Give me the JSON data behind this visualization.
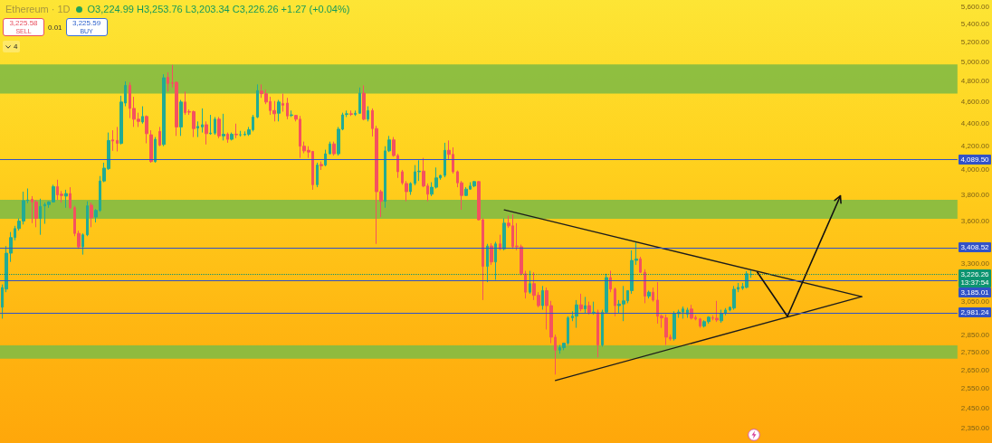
{
  "chart_data": {
    "type": "candlestick",
    "title": "Ethereum · 1D",
    "subtitle": "O3,224.99 H3,253.76 L3,203.34 C3,226.26 +1.27 (+0.04%)",
    "categories": [
      null,
      null,
      null,
      null,
      null,
      null,
      null,
      null,
      null,
      null,
      null,
      null,
      null,
      null,
      null,
      null,
      null,
      null,
      null,
      null,
      null,
      null,
      null,
      null,
      null,
      null,
      null,
      null,
      null,
      null,
      null,
      null,
      null,
      null,
      null,
      null,
      null,
      null,
      null,
      null,
      null,
      null,
      null,
      null,
      null,
      null,
      null,
      null,
      null,
      null,
      null,
      null,
      null,
      null,
      null,
      null,
      null,
      null,
      null,
      null,
      null,
      null,
      null,
      null,
      null,
      null,
      null,
      null,
      null,
      null,
      null,
      null,
      null,
      null,
      null,
      null,
      null,
      null,
      null,
      null,
      null,
      null,
      null,
      null,
      null,
      null,
      null,
      null,
      null,
      null,
      null,
      null,
      null,
      null,
      null,
      null,
      null,
      null,
      null,
      null,
      null,
      null,
      null,
      null,
      null,
      null,
      null,
      null,
      null,
      null,
      null,
      null,
      null,
      null,
      null,
      null,
      null,
      null,
      null,
      null,
      null,
      null,
      null,
      null,
      null,
      null,
      null,
      null,
      null,
      null,
      null,
      null,
      null,
      null,
      null,
      null,
      null,
      null,
      null,
      null,
      null,
      null,
      null,
      null,
      null,
      null,
      null,
      null,
      null,
      null,
      null,
      null,
      null,
      null,
      null,
      null,
      null,
      null,
      null,
      null,
      null,
      null,
      null,
      null,
      null,
      null,
      null,
      null,
      null,
      null,
      null,
      null,
      null,
      null,
      null,
      null,
      null,
      null,
      null,
      null,
      null,
      null,
      null,
      null,
      null,
      null,
      null,
      null,
      null,
      null,
      null,
      null,
      null,
      null,
      null,
      null,
      null,
      null,
      null,
      null,
      null,
      null,
      null,
      null,
      null,
      null,
      null,
      null,
      null,
      null,
      null,
      null,
      null,
      null,
      null,
      null,
      null,
      null,
      null,
      null,
      null,
      null,
      null,
      null,
      null
    ],
    "ohlc": [
      [
        3015,
        3160,
        2945,
        3140
      ],
      [
        3130,
        3420,
        3110,
        3370
      ],
      [
        3370,
        3520,
        3310,
        3480
      ],
      [
        3480,
        3565,
        3460,
        3545
      ],
      [
        3545,
        3620,
        3530,
        3600
      ],
      [
        3600,
        3825,
        3575,
        3755
      ],
      [
        3755,
        3850,
        3735,
        3760
      ],
      [
        3765,
        3790,
        3585,
        3745
      ],
      [
        3745,
        3760,
        3555,
        3620
      ],
      [
        3620,
        3770,
        3500,
        3710
      ],
      [
        3715,
        3740,
        3580,
        3725
      ],
      [
        3725,
        3750,
        3700,
        3745
      ],
      [
        3745,
        3880,
        3740,
        3865
      ],
      [
        3865,
        3920,
        3760,
        3800
      ],
      [
        3805,
        3830,
        3740,
        3795
      ],
      [
        3790,
        3840,
        3700,
        3810
      ],
      [
        3810,
        3860,
        3690,
        3700
      ],
      [
        3700,
        3715,
        3490,
        3510
      ],
      [
        3510,
        3530,
        3400,
        3415
      ],
      [
        3415,
        3510,
        3360,
        3500
      ],
      [
        3500,
        3750,
        3490,
        3715
      ],
      [
        3720,
        3740,
        3555,
        3625
      ],
      [
        3630,
        3690,
        3590,
        3680
      ],
      [
        3680,
        3950,
        3670,
        3910
      ],
      [
        3910,
        4060,
        3900,
        4015
      ],
      [
        4010,
        4320,
        4000,
        4250
      ],
      [
        4255,
        4340,
        4160,
        4245
      ],
      [
        4250,
        4370,
        4155,
        4225
      ],
      [
        4225,
        4660,
        4215,
        4600
      ],
      [
        4590,
        4800,
        4560,
        4760
      ],
      [
        4760,
        4790,
        4450,
        4540
      ],
      [
        4540,
        4650,
        4370,
        4440
      ],
      [
        4440,
        4500,
        4370,
        4420
      ],
      [
        4415,
        4560,
        4400,
        4465
      ],
      [
        4465,
        4475,
        4225,
        4310
      ],
      [
        4300,
        4340,
        4060,
        4070
      ],
      [
        4070,
        4280,
        4060,
        4260
      ],
      [
        4330,
        4370,
        4200,
        4210
      ],
      [
        4215,
        4870,
        4200,
        4835
      ],
      [
        4840,
        4890,
        4700,
        4780
      ],
      [
        4785,
        4965,
        4740,
        4780
      ],
      [
        4790,
        4800,
        4290,
        4370
      ],
      [
        4370,
        4620,
        4290,
        4600
      ],
      [
        4600,
        4700,
        4480,
        4500
      ],
      [
        4510,
        4530,
        4480,
        4505
      ],
      [
        4510,
        4520,
        4280,
        4355
      ],
      [
        4360,
        4420,
        4280,
        4375
      ],
      [
        4370,
        4540,
        4320,
        4390
      ],
      [
        4390,
        4420,
        4215,
        4310
      ],
      [
        4310,
        4480,
        4300,
        4315
      ],
      [
        4315,
        4460,
        4300,
        4440
      ],
      [
        4440,
        4460,
        4270,
        4290
      ],
      [
        4290,
        4490,
        4250,
        4305
      ],
      [
        4305,
        4320,
        4230,
        4260
      ],
      [
        4260,
        4320,
        4250,
        4305
      ],
      [
        4305,
        4400,
        4270,
        4300
      ],
      [
        4300,
        4335,
        4285,
        4300
      ],
      [
        4300,
        4330,
        4290,
        4305
      ],
      [
        4305,
        4370,
        4290,
        4345
      ],
      [
        4345,
        4480,
        4330,
        4460
      ],
      [
        4460,
        4770,
        4450,
        4710
      ],
      [
        4705,
        4770,
        4640,
        4680
      ],
      [
        4680,
        4720,
        4580,
        4600
      ],
      [
        4605,
        4650,
        4480,
        4520
      ],
      [
        4520,
        4610,
        4420,
        4490
      ],
      [
        4495,
        4620,
        4420,
        4600
      ],
      [
        4585,
        4680,
        4510,
        4570
      ],
      [
        4590,
        4640,
        4440,
        4470
      ],
      [
        4475,
        4520,
        4460,
        4480
      ],
      [
        4475,
        4480,
        4420,
        4440
      ],
      [
        4440,
        4470,
        4100,
        4200
      ],
      [
        4200,
        4240,
        4140,
        4160
      ],
      [
        4165,
        4200,
        4100,
        4150
      ],
      [
        4155,
        4160,
        3840,
        3880
      ],
      [
        3880,
        4060,
        3860,
        4040
      ],
      [
        4045,
        4070,
        4000,
        4035
      ],
      [
        4040,
        4170,
        4030,
        4135
      ],
      [
        4135,
        4240,
        4130,
        4220
      ],
      [
        4220,
        4240,
        4120,
        4135
      ],
      [
        4135,
        4370,
        4120,
        4350
      ],
      [
        4350,
        4500,
        4340,
        4480
      ],
      [
        4485,
        4520,
        4460,
        4490
      ],
      [
        4490,
        4520,
        4470,
        4485
      ],
      [
        4485,
        4520,
        4470,
        4495
      ],
      [
        4495,
        4740,
        4490,
        4685
      ],
      [
        4685,
        4760,
        4430,
        4440
      ],
      [
        4440,
        4560,
        4420,
        4520
      ],
      [
        4520,
        4540,
        4285,
        4355
      ],
      [
        4355,
        4380,
        3435,
        3825
      ],
      [
        3825,
        3840,
        3630,
        3750
      ],
      [
        3750,
        4200,
        3700,
        4160
      ],
      [
        4160,
        4290,
        4150,
        4255
      ],
      [
        4255,
        4280,
        4110,
        4120
      ],
      [
        4120,
        4135,
        3935,
        3985
      ],
      [
        3985,
        4000,
        3880,
        3895
      ],
      [
        3890,
        3910,
        3750,
        3825
      ],
      [
        3825,
        3900,
        3800,
        3890
      ],
      [
        3890,
        4040,
        3875,
        3985
      ],
      [
        3985,
        4080,
        3910,
        3990
      ],
      [
        3990,
        4100,
        3860,
        3870
      ],
      [
        3870,
        3890,
        3750,
        3805
      ],
      [
        3805,
        3900,
        3790,
        3860
      ],
      [
        3860,
        4020,
        3850,
        3935
      ],
      [
        3935,
        3960,
        3920,
        3955
      ],
      [
        3955,
        4230,
        3940,
        4165
      ],
      [
        4165,
        4250,
        4090,
        4130
      ],
      [
        4130,
        4190,
        3970,
        3985
      ],
      [
        3985,
        3995,
        3860,
        3895
      ],
      [
        3895,
        3910,
        3685,
        3795
      ],
      [
        3795,
        3860,
        3790,
        3845
      ],
      [
        3845,
        3900,
        3840,
        3870
      ],
      [
        3870,
        3910,
        3860,
        3905
      ],
      [
        3905,
        3910,
        3605,
        3610
      ],
      [
        3610,
        3620,
        3060,
        3280
      ],
      [
        3280,
        3435,
        3175,
        3420
      ],
      [
        3420,
        3440,
        3290,
        3310
      ],
      [
        3310,
        3450,
        3190,
        3435
      ],
      [
        3435,
        3500,
        3390,
        3400
      ],
      [
        3400,
        3620,
        3390,
        3585
      ],
      [
        3585,
        3640,
        3550,
        3565
      ],
      [
        3565,
        3650,
        3400,
        3415
      ],
      [
        3420,
        3585,
        3390,
        3415
      ],
      [
        3415,
        3430,
        3220,
        3230
      ],
      [
        3230,
        3250,
        3070,
        3110
      ],
      [
        3110,
        3250,
        3100,
        3165
      ],
      [
        3165,
        3240,
        3060,
        3090
      ],
      [
        3090,
        3110,
        3015,
        3025
      ],
      [
        3025,
        3150,
        3000,
        3120
      ],
      [
        3120,
        3140,
        2880,
        3025
      ],
      [
        3025,
        3055,
        2800,
        2835
      ],
      [
        2835,
        2850,
        2625,
        2760
      ],
      [
        2760,
        2790,
        2740,
        2775
      ],
      [
        2775,
        2800,
        2760,
        2800
      ],
      [
        2800,
        2960,
        2790,
        2950
      ],
      [
        2950,
        2990,
        2930,
        2960
      ],
      [
        2960,
        3060,
        2890,
        3030
      ],
      [
        3030,
        3100,
        2990,
        3005
      ],
      [
        3005,
        3080,
        2980,
        3025
      ],
      [
        3025,
        3050,
        2970,
        2980
      ],
      [
        2980,
        3050,
        2970,
        2985
      ],
      [
        2985,
        3000,
        2720,
        2790
      ],
      [
        2790,
        3000,
        2780,
        2985
      ],
      [
        2985,
        3230,
        2980,
        3205
      ],
      [
        3205,
        3250,
        3110,
        3130
      ],
      [
        3130,
        3140,
        2960,
        3025
      ],
      [
        3025,
        3060,
        2975,
        3035
      ],
      [
        3035,
        3150,
        2930,
        3055
      ],
      [
        3055,
        3120,
        3040,
        3120
      ],
      [
        3120,
        3390,
        3100,
        3320
      ],
      [
        3320,
        3445,
        3290,
        3330
      ],
      [
        3330,
        3345,
        3235,
        3240
      ],
      [
        3240,
        3260,
        3040,
        3085
      ],
      [
        3085,
        3120,
        3070,
        3110
      ],
      [
        3110,
        3140,
        3050,
        3060
      ],
      [
        3060,
        3175,
        2915,
        2960
      ],
      [
        2960,
        2970,
        2890,
        2950
      ],
      [
        2950,
        2970,
        2790,
        2835
      ],
      [
        2835,
        2850,
        2815,
        2825
      ],
      [
        2825,
        2990,
        2815,
        2975
      ],
      [
        2975,
        3000,
        2950,
        2985
      ],
      [
        2985,
        3020,
        2945,
        3005
      ],
      [
        2972,
        3012,
        2950,
        2998
      ],
      [
        3004,
        3030,
        2940,
        2948
      ],
      [
        2952,
        2965,
        2935,
        2943
      ],
      [
        2943,
        2950,
        2890,
        2900
      ],
      [
        2900,
        2935,
        2892,
        2927
      ],
      [
        2927,
        2960,
        2915,
        2954
      ],
      [
        2950,
        2965,
        2935,
        2948
      ],
      [
        2948,
        3055,
        2925,
        2937
      ],
      [
        2932,
        3000,
        2920,
        2976
      ],
      [
        2976,
        3010,
        2965,
        2998
      ],
      [
        2998,
        3020,
        2990,
        3015
      ],
      [
        3010,
        3150,
        3000,
        3129
      ],
      [
        3129,
        3170,
        3110,
        3141
      ],
      [
        3135,
        3170,
        3125,
        3147
      ],
      [
        3141,
        3248,
        3135,
        3230
      ],
      [
        3224.99,
        3253.76,
        3203.34,
        3226.26
      ],
      null,
      null,
      null,
      null,
      null,
      null,
      null,
      null,
      null,
      null,
      null,
      null,
      null,
      null,
      null,
      null,
      null,
      null,
      null,
      null,
      null,
      null,
      null,
      null,
      null,
      null,
      null,
      null,
      null,
      null,
      null,
      null,
      null,
      null,
      null,
      null,
      null,
      null,
      null,
      null,
      null,
      null,
      null,
      null,
      null,
      null,
      null,
      null
    ],
    "series": [
      {
        "type": "line",
        "color": "#1c1c1c",
        "values": [
          null,
          null,
          null,
          null,
          null,
          null,
          null,
          null,
          null,
          null,
          null,
          null,
          null,
          null,
          null,
          null,
          null,
          null,
          null,
          null,
          null,
          null,
          null,
          null,
          null,
          null,
          null,
          null,
          null,
          null,
          null,
          null,
          null,
          null,
          null,
          null,
          null,
          null,
          null,
          null,
          null,
          null,
          null,
          null,
          null,
          null,
          null,
          null,
          null,
          null,
          null,
          null,
          null,
          null,
          null,
          null,
          null,
          null,
          null,
          null,
          null,
          null,
          null,
          null,
          null,
          null,
          null,
          null,
          null,
          null,
          null,
          null,
          null,
          null,
          null,
          null,
          null,
          null,
          null,
          null,
          null,
          null,
          null,
          null,
          null,
          null,
          null,
          null,
          null,
          null,
          null,
          null,
          null,
          null,
          null,
          null,
          null,
          null,
          null,
          null,
          null,
          null,
          null,
          null,
          null,
          null,
          null,
          null,
          null,
          null,
          null,
          null,
          null,
          null,
          null,
          null,
          null,
          null,
          3684,
          null,
          null,
          null,
          null,
          null,
          null,
          null,
          null,
          null,
          null,
          null,
          null,
          null,
          null,
          null,
          null,
          null,
          null,
          null,
          null,
          null,
          null,
          null,
          null,
          null,
          null,
          null,
          null,
          null,
          null,
          null,
          null,
          null,
          null,
          null,
          null,
          null,
          null,
          null,
          null,
          null,
          null,
          null,
          null,
          null,
          null,
          null,
          null,
          null,
          null,
          null,
          null,
          null,
          null,
          null,
          null,
          null,
          null,
          null,
          null,
          null,
          null,
          null,
          null,
          null,
          null,
          null,
          null,
          null,
          null,
          null,
          null,
          null,
          null,
          null,
          null,
          null,
          null,
          null,
          null,
          null,
          null,
          null,
          3081,
          null,
          null,
          null,
          null,
          null,
          null,
          null,
          null,
          null,
          null,
          null,
          null,
          null,
          null,
          null,
          null,
          null,
          null,
          null,
          null,
          null,
          null
        ]
      },
      {
        "type": "line",
        "color": "#1c1c1c",
        "values": [
          null,
          null,
          null,
          null,
          null,
          null,
          null,
          null,
          null,
          null,
          null,
          null,
          null,
          null,
          null,
          null,
          null,
          null,
          null,
          null,
          null,
          null,
          null,
          null,
          null,
          null,
          null,
          null,
          null,
          null,
          null,
          null,
          null,
          null,
          null,
          null,
          null,
          null,
          null,
          null,
          null,
          null,
          null,
          null,
          null,
          null,
          null,
          null,
          null,
          null,
          null,
          null,
          null,
          null,
          null,
          null,
          null,
          null,
          null,
          null,
          null,
          null,
          null,
          null,
          null,
          null,
          null,
          null,
          null,
          null,
          null,
          null,
          null,
          null,
          null,
          null,
          null,
          null,
          null,
          null,
          null,
          null,
          null,
          null,
          null,
          null,
          null,
          null,
          null,
          null,
          null,
          null,
          null,
          null,
          null,
          null,
          null,
          null,
          null,
          null,
          null,
          null,
          null,
          null,
          null,
          null,
          null,
          null,
          null,
          null,
          null,
          null,
          null,
          null,
          null,
          null,
          null,
          null,
          null,
          null,
          null,
          null,
          null,
          null,
          null,
          null,
          null,
          null,
          null,
          null,
          2593,
          null,
          null,
          null,
          null,
          null,
          null,
          null,
          null,
          null,
          null,
          null,
          null,
          null,
          null,
          null,
          null,
          null,
          null,
          null,
          null,
          null,
          null,
          null,
          null,
          null,
          null,
          null,
          null,
          null,
          null,
          null,
          null,
          null,
          null,
          null,
          null,
          null,
          null,
          null,
          null,
          null,
          null,
          null,
          null,
          null,
          null,
          null,
          null,
          null,
          null,
          null,
          null,
          null,
          null,
          null,
          null,
          null,
          null,
          null,
          null,
          null,
          null,
          null,
          null,
          null,
          null,
          null,
          null,
          null,
          null,
          null,
          3081,
          null,
          null,
          null,
          null,
          null,
          null,
          null,
          null,
          null,
          null,
          null,
          null,
          null,
          null,
          null,
          null,
          null,
          null,
          null,
          null,
          null,
          null
        ]
      }
    ],
    "ylim": [
      2280,
      5675
    ],
    "log": true,
    "tick_labels": "y",
    "yticks": [
      {
        "value": 5600,
        "label": "5,600.00"
      },
      {
        "value": 5400,
        "label": "5,400.00"
      },
      {
        "value": 5200,
        "label": "5,200.00"
      },
      {
        "value": 5000,
        "label": "5,000.00"
      },
      {
        "value": 4800,
        "label": "4,800.00"
      },
      {
        "value": 4600,
        "label": "4,600.00"
      },
      {
        "value": 4400,
        "label": "4,400.00"
      },
      {
        "value": 4200,
        "label": "4,200.00"
      },
      {
        "value": 4000,
        "label": "4,000.00"
      },
      {
        "value": 3800,
        "label": "3,800.00"
      },
      {
        "value": 3600,
        "label": "3,600.00"
      },
      {
        "value": 3300,
        "label": "3,300.00"
      },
      {
        "value": 3050,
        "label": "3,050.00"
      },
      {
        "value": 2850,
        "label": "2,850.00"
      },
      {
        "value": 2750,
        "label": "2,750.00"
      },
      {
        "value": 2650,
        "label": "2,650.00"
      },
      {
        "value": 2550,
        "label": "2,550.00"
      },
      {
        "value": 2450,
        "label": "2,450.00"
      },
      {
        "value": 2350,
        "label": "2,350.00"
      }
    ],
    "ref_lines": [
      {
        "axis": "y",
        "value": 4089.5,
        "label": "4,089.50",
        "color": "#3152c8"
      },
      {
        "axis": "y",
        "value": 3408.52,
        "label": "3,408.52",
        "color": "#3152c8"
      },
      {
        "axis": "y",
        "value": 3226.26,
        "label": "3,226.26",
        "color": "#0c9470",
        "line_style": "dotted"
      },
      {
        "axis": "y",
        "value": 3185.01,
        "label": "3,185.01",
        "color": "#3152c8"
      },
      {
        "axis": "y",
        "value": 2981.24,
        "label": "2,981.24",
        "color": "#3152c8"
      }
    ],
    "bands": [
      {
        "axis": "y",
        "from": 4680,
        "to": 4970,
        "color": "#86bc42"
      },
      {
        "axis": "y",
        "from": 3618,
        "to": 3762,
        "color": "#86bc42"
      },
      {
        "axis": "y",
        "from": 2712,
        "to": 2788,
        "color": "#86bc42"
      }
    ],
    "annotations": [
      "3,225.58",
      "SELL",
      "0.01",
      "3,225.59",
      "BUY",
      "4",
      "13:37:54"
    ]
  }
}
